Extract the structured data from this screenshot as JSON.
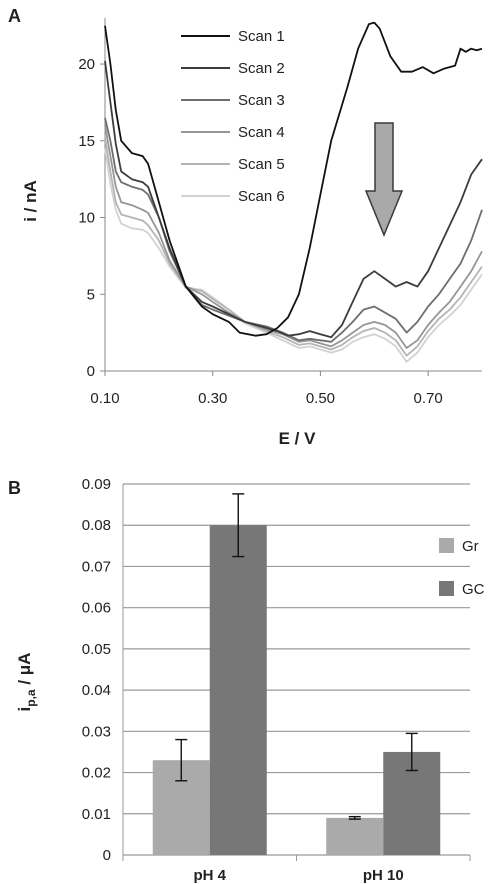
{
  "chart_data": [
    {
      "panel": "A",
      "type": "line",
      "xlabel": "E / V",
      "ylabel": "i / nA",
      "xlim": [
        0.1,
        0.8
      ],
      "ylim": [
        0,
        23
      ],
      "xticks": [
        "0.10",
        "0.30",
        "0.50",
        "0.70"
      ],
      "xtick_values": [
        0.1,
        0.3,
        0.5,
        0.7
      ],
      "yticks": [
        "0",
        "5",
        "10",
        "15",
        "20"
      ],
      "ytick_values": [
        0,
        5,
        10,
        15,
        20
      ],
      "grid": false,
      "legend_position": "top-center",
      "annotation": "downward arrow indicating decreasing current with successive scans",
      "series": [
        {
          "name": "Scan 1",
          "color": "#111111",
          "points": [
            [
              0.1,
              22.5
            ],
            [
              0.11,
              20.0
            ],
            [
              0.12,
              17.0
            ],
            [
              0.13,
              15.0
            ],
            [
              0.15,
              14.2
            ],
            [
              0.17,
              14.0
            ],
            [
              0.18,
              13.5
            ],
            [
              0.2,
              11.0
            ],
            [
              0.22,
              8.5
            ],
            [
              0.25,
              5.5
            ],
            [
              0.28,
              4.2
            ],
            [
              0.3,
              3.7
            ],
            [
              0.33,
              3.2
            ],
            [
              0.35,
              2.5
            ],
            [
              0.38,
              2.3
            ],
            [
              0.4,
              2.4
            ],
            [
              0.42,
              2.8
            ],
            [
              0.44,
              3.5
            ],
            [
              0.46,
              5.0
            ],
            [
              0.48,
              8.0
            ],
            [
              0.5,
              11.5
            ],
            [
              0.52,
              15.0
            ],
            [
              0.55,
              18.5
            ],
            [
              0.57,
              21.0
            ],
            [
              0.59,
              22.6
            ],
            [
              0.6,
              22.7
            ],
            [
              0.61,
              22.3
            ],
            [
              0.63,
              20.5
            ],
            [
              0.65,
              19.5
            ],
            [
              0.67,
              19.5
            ],
            [
              0.69,
              19.8
            ],
            [
              0.71,
              19.4
            ],
            [
              0.73,
              19.7
            ],
            [
              0.75,
              19.9
            ],
            [
              0.76,
              21.0
            ],
            [
              0.77,
              20.8
            ],
            [
              0.78,
              21.0
            ],
            [
              0.79,
              20.9
            ],
            [
              0.8,
              21.0
            ]
          ]
        },
        {
          "name": "Scan 2",
          "color": "#3c3c3c",
          "points": [
            [
              0.1,
              20.2
            ],
            [
              0.11,
              17.5
            ],
            [
              0.12,
              14.8
            ],
            [
              0.13,
              13.0
            ],
            [
              0.15,
              12.5
            ],
            [
              0.17,
              12.3
            ],
            [
              0.18,
              12.0
            ],
            [
              0.2,
              10.0
            ],
            [
              0.22,
              8.0
            ],
            [
              0.25,
              5.5
            ],
            [
              0.28,
              4.5
            ],
            [
              0.3,
              4.2
            ],
            [
              0.33,
              3.7
            ],
            [
              0.36,
              3.2
            ],
            [
              0.4,
              2.8
            ],
            [
              0.42,
              2.6
            ],
            [
              0.44,
              2.3
            ],
            [
              0.46,
              2.4
            ],
            [
              0.48,
              2.6
            ],
            [
              0.5,
              2.4
            ],
            [
              0.52,
              2.2
            ],
            [
              0.54,
              3.0
            ],
            [
              0.56,
              4.5
            ],
            [
              0.58,
              6.0
            ],
            [
              0.6,
              6.5
            ],
            [
              0.62,
              6.0
            ],
            [
              0.64,
              5.5
            ],
            [
              0.66,
              5.8
            ],
            [
              0.68,
              5.5
            ],
            [
              0.7,
              6.5
            ],
            [
              0.72,
              8.0
            ],
            [
              0.74,
              9.5
            ],
            [
              0.76,
              11.0
            ],
            [
              0.78,
              12.8
            ],
            [
              0.8,
              13.8
            ]
          ]
        },
        {
          "name": "Scan 3",
          "color": "#6e6e6e",
          "points": [
            [
              0.1,
              16.5
            ],
            [
              0.11,
              15.0
            ],
            [
              0.12,
              13.0
            ],
            [
              0.13,
              12.3
            ],
            [
              0.15,
              12.0
            ],
            [
              0.17,
              11.8
            ],
            [
              0.18,
              11.5
            ],
            [
              0.2,
              10.0
            ],
            [
              0.22,
              7.8
            ],
            [
              0.25,
              5.5
            ],
            [
              0.28,
              4.3
            ],
            [
              0.3,
              4.0
            ],
            [
              0.33,
              3.6
            ],
            [
              0.36,
              3.2
            ],
            [
              0.4,
              2.9
            ],
            [
              0.43,
              2.5
            ],
            [
              0.46,
              2.0
            ],
            [
              0.48,
              2.1
            ],
            [
              0.5,
              2.0
            ],
            [
              0.52,
              1.9
            ],
            [
              0.54,
              2.5
            ],
            [
              0.56,
              3.2
            ],
            [
              0.58,
              4.0
            ],
            [
              0.6,
              4.2
            ],
            [
              0.62,
              3.8
            ],
            [
              0.64,
              3.4
            ],
            [
              0.66,
              2.5
            ],
            [
              0.68,
              3.2
            ],
            [
              0.7,
              4.2
            ],
            [
              0.72,
              5.0
            ],
            [
              0.74,
              6.0
            ],
            [
              0.76,
              7.0
            ],
            [
              0.78,
              8.5
            ],
            [
              0.8,
              10.5
            ]
          ]
        },
        {
          "name": "Scan 4",
          "color": "#969696",
          "points": [
            [
              0.1,
              16.0
            ],
            [
              0.11,
              14.0
            ],
            [
              0.12,
              12.0
            ],
            [
              0.13,
              11.0
            ],
            [
              0.15,
              10.8
            ],
            [
              0.17,
              10.5
            ],
            [
              0.18,
              10.3
            ],
            [
              0.2,
              9.0
            ],
            [
              0.22,
              7.2
            ],
            [
              0.25,
              5.5
            ],
            [
              0.28,
              5.0
            ],
            [
              0.3,
              4.5
            ],
            [
              0.33,
              3.8
            ],
            [
              0.36,
              3.2
            ],
            [
              0.4,
              2.7
            ],
            [
              0.43,
              2.4
            ],
            [
              0.46,
              1.9
            ],
            [
              0.48,
              2.0
            ],
            [
              0.5,
              1.8
            ],
            [
              0.52,
              1.6
            ],
            [
              0.54,
              2.0
            ],
            [
              0.56,
              2.5
            ],
            [
              0.58,
              3.0
            ],
            [
              0.6,
              3.2
            ],
            [
              0.62,
              3.0
            ],
            [
              0.64,
              2.5
            ],
            [
              0.66,
              1.5
            ],
            [
              0.68,
              2.0
            ],
            [
              0.7,
              3.0
            ],
            [
              0.72,
              3.8
            ],
            [
              0.74,
              4.5
            ],
            [
              0.76,
              5.5
            ],
            [
              0.78,
              6.5
            ],
            [
              0.8,
              7.8
            ]
          ]
        },
        {
          "name": "Scan 5",
          "color": "#b4b4b4",
          "points": [
            [
              0.1,
              15.2
            ],
            [
              0.11,
              13.0
            ],
            [
              0.12,
              11.0
            ],
            [
              0.13,
              10.2
            ],
            [
              0.15,
              10.0
            ],
            [
              0.17,
              9.8
            ],
            [
              0.18,
              9.5
            ],
            [
              0.2,
              8.5
            ],
            [
              0.22,
              7.0
            ],
            [
              0.25,
              5.5
            ],
            [
              0.28,
              5.2
            ],
            [
              0.3,
              4.7
            ],
            [
              0.33,
              4.0
            ],
            [
              0.36,
              3.2
            ],
            [
              0.4,
              2.6
            ],
            [
              0.43,
              2.2
            ],
            [
              0.46,
              1.7
            ],
            [
              0.48,
              1.8
            ],
            [
              0.5,
              1.6
            ],
            [
              0.52,
              1.4
            ],
            [
              0.54,
              1.7
            ],
            [
              0.56,
              2.2
            ],
            [
              0.58,
              2.6
            ],
            [
              0.6,
              2.8
            ],
            [
              0.62,
              2.5
            ],
            [
              0.64,
              2.0
            ],
            [
              0.66,
              1.0
            ],
            [
              0.68,
              1.6
            ],
            [
              0.7,
              2.6
            ],
            [
              0.72,
              3.4
            ],
            [
              0.74,
              4.0
            ],
            [
              0.76,
              4.8
            ],
            [
              0.78,
              5.8
            ],
            [
              0.8,
              6.8
            ]
          ]
        },
        {
          "name": "Scan 6",
          "color": "#d2d2d2",
          "points": [
            [
              0.1,
              14.5
            ],
            [
              0.11,
              12.2
            ],
            [
              0.12,
              10.5
            ],
            [
              0.13,
              9.6
            ],
            [
              0.15,
              9.3
            ],
            [
              0.17,
              9.2
            ],
            [
              0.18,
              9.0
            ],
            [
              0.2,
              8.0
            ],
            [
              0.22,
              6.8
            ],
            [
              0.25,
              5.4
            ],
            [
              0.28,
              5.3
            ],
            [
              0.3,
              4.8
            ],
            [
              0.33,
              4.0
            ],
            [
              0.36,
              3.1
            ],
            [
              0.4,
              2.5
            ],
            [
              0.43,
              2.0
            ],
            [
              0.46,
              1.5
            ],
            [
              0.48,
              1.6
            ],
            [
              0.5,
              1.4
            ],
            [
              0.52,
              1.2
            ],
            [
              0.54,
              1.4
            ],
            [
              0.56,
              1.9
            ],
            [
              0.58,
              2.2
            ],
            [
              0.6,
              2.4
            ],
            [
              0.62,
              2.1
            ],
            [
              0.64,
              1.6
            ],
            [
              0.66,
              0.6
            ],
            [
              0.68,
              1.2
            ],
            [
              0.7,
              2.2
            ],
            [
              0.72,
              3.0
            ],
            [
              0.74,
              3.6
            ],
            [
              0.76,
              4.3
            ],
            [
              0.78,
              5.3
            ],
            [
              0.8,
              6.3
            ]
          ]
        }
      ]
    },
    {
      "panel": "B",
      "type": "bar",
      "xlabel": "",
      "ylabel": "i",
      "ylabel_subscript": "p,a",
      "ylabel_unit": " / μA",
      "ylim": [
        0,
        0.09
      ],
      "yticks": [
        "0",
        "0.01",
        "0.02",
        "0.03",
        "0.04",
        "0.05",
        "0.06",
        "0.07",
        "0.08",
        "0.09"
      ],
      "ytick_values": [
        0,
        0.01,
        0.02,
        0.03,
        0.04,
        0.05,
        0.06,
        0.07,
        0.08,
        0.09
      ],
      "grid": true,
      "legend_position": "right",
      "categories": [
        "pH 4",
        "pH 10"
      ],
      "series": [
        {
          "name": "Gr",
          "color": "#aaaaaa",
          "values": [
            0.023,
            0.009
          ],
          "errors": [
            0.005,
            0.0003
          ]
        },
        {
          "name": "GC",
          "color": "#777777",
          "values": [
            0.08,
            0.025
          ],
          "errors": [
            0.0076,
            0.0045
          ]
        }
      ]
    }
  ]
}
